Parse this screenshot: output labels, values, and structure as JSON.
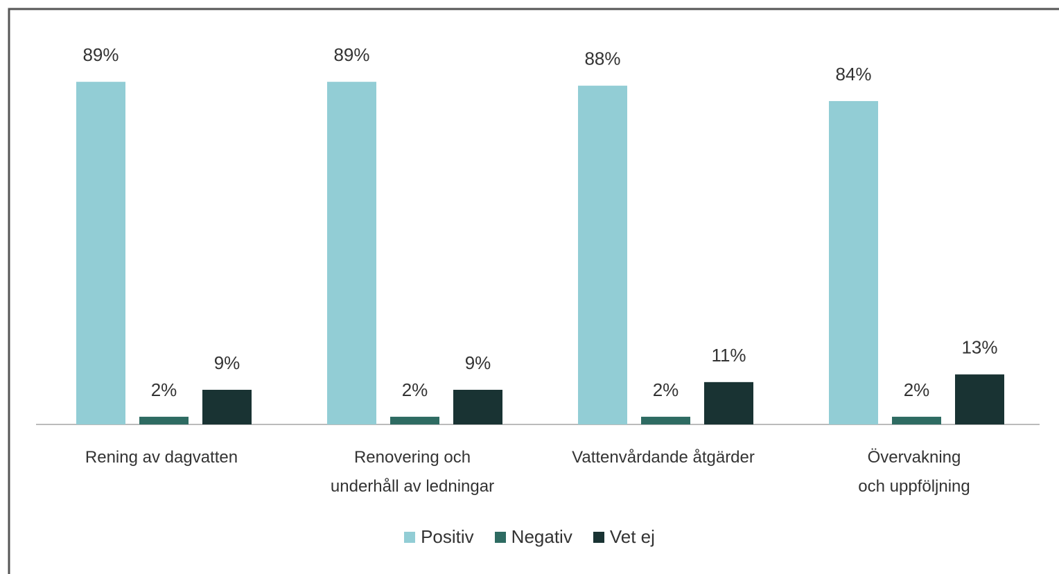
{
  "chart_data": {
    "type": "bar",
    "categories": [
      "Rening av dagvatten",
      "Renovering och underhåll av ledningar",
      "Vattenvårdande åtgärder",
      "Övervakning och uppföljning"
    ],
    "series": [
      {
        "name": "Positiv",
        "color": "#92cdd5",
        "values": [
          89,
          89,
          88,
          84
        ],
        "value_labels": [
          "89%",
          "89%",
          "88%",
          "84%"
        ]
      },
      {
        "name": "Negativ",
        "color": "#2e6b62",
        "values": [
          2,
          2,
          2,
          2
        ],
        "value_labels": [
          "2%",
          "2%",
          "2%",
          "2%"
        ]
      },
      {
        "name": "Vet ej",
        "color": "#193333",
        "values": [
          9,
          9,
          11,
          13
        ],
        "value_labels": [
          "9%",
          "9%",
          "11%",
          "13%"
        ]
      }
    ],
    "ylim": [
      0,
      100
    ],
    "legend": "bottom"
  }
}
